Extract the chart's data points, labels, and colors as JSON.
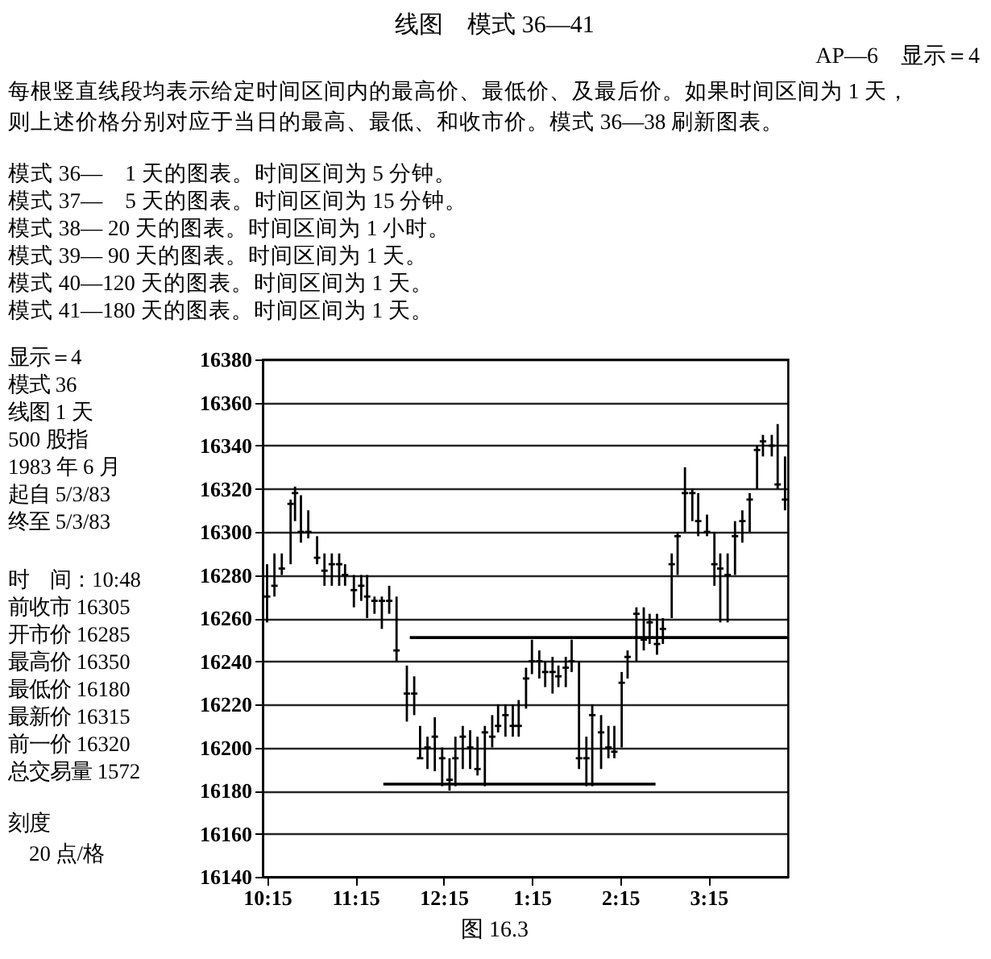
{
  "chart_data": {
    "type": "candlestick",
    "title": "线图　模式 36—41",
    "subtitle": "AP—6　显示＝4",
    "annotations": [
      "每根竖直线段均表示给定时间区间内的最高价、最低价、及最后价。如果时间区间为 1 天，",
      "则上述价格分别对应于当日的最高、最低、和收市价。模式 36—38 刷新图表。",
      "模式 36—　1 天的图表。时间区间为 5 分钟。",
      "模式 37—　5 天的图表。时间区间为 15 分钟。",
      "模式 38— 20 天的图表。时间区间为 1 小时。",
      "模式 39— 90 天的图表。时间区间为 1 天。",
      "模式 40—120 天的图表。时间区间为 1 天。",
      "模式 41—180 天的图表。时间区间为 1 天。",
      "显示＝4",
      "模式 36",
      "线图 1 天",
      "500 股指",
      "1983 年 6 月",
      "起自 5/3/83",
      "终至 5/3/83",
      "时　间：10:48",
      "前收市 16305",
      "开市价 16285",
      "最高价 16350",
      "最低价 16180",
      "最新价 16315",
      "前一价 16320",
      "总交易量 1572",
      "刻度",
      "20 点/格",
      "图 16.3"
    ],
    "color": "#000000",
    "x": [
      "1983-05-03T10:15",
      "1983-05-03T10:20",
      "1983-05-03T10:25",
      "1983-05-03T10:31",
      "1983-05-03T10:34",
      "1983-05-03T10:38",
      "1983-05-03T10:43",
      "1983-05-03T10:49",
      "1983-05-03T10:54",
      "1983-05-03T10:59",
      "1983-05-03T11:04",
      "1983-05-03T11:08",
      "1983-05-03T11:14",
      "1983-05-03T11:19",
      "1983-05-03T11:23",
      "1983-05-03T11:28",
      "1983-05-03T11:33",
      "1983-05-03T11:38",
      "1983-05-03T11:43",
      "1983-05-03T11:50",
      "1983-05-03T11:55",
      "1983-05-03T11:59",
      "1983-05-03T12:04",
      "1983-05-03T12:09",
      "1983-05-03T12:14",
      "1983-05-03T12:19",
      "1983-05-03T12:23",
      "1983-05-03T12:28",
      "1983-05-03T12:33",
      "1983-05-03T12:38",
      "1983-05-03T12:43",
      "1983-05-03T12:48",
      "1983-05-03T12:52",
      "1983-05-03T12:57",
      "1983-05-03T13:02",
      "1983-05-03T13:06",
      "1983-05-03T13:11",
      "1983-05-03T13:15",
      "1983-05-03T13:20",
      "1983-05-03T13:24",
      "1983-05-03T13:29",
      "1983-05-03T13:33",
      "1983-05-03T13:38",
      "1983-05-03T13:42",
      "1983-05-03T13:47",
      "1983-05-03T13:52",
      "1983-05-03T13:56",
      "1983-05-03T14:02",
      "1983-05-03T14:07",
      "1983-05-03T14:11",
      "1983-05-03T14:16",
      "1983-05-03T14:20",
      "1983-05-03T14:26",
      "1983-05-03T14:31",
      "1983-05-03T14:35",
      "1983-05-03T14:40",
      "1983-05-03T14:44",
      "1983-05-03T14:50",
      "1983-05-03T14:54",
      "1983-05-03T14:59",
      "1983-05-03T15:04",
      "1983-05-03T15:08",
      "1983-05-03T15:14",
      "1983-05-03T15:19",
      "1983-05-03T15:23",
      "1983-05-03T15:28",
      "1983-05-03T15:33",
      "1983-05-03T15:38",
      "1983-05-03T15:43",
      "1983-05-03T15:48",
      "1983-05-03T15:52",
      "1983-05-03T15:58",
      "1983-05-03T16:02",
      "1983-05-03T16:07"
    ],
    "ohlc": [
      [
        16270,
        16285,
        16258,
        16270
      ],
      [
        16275,
        16290,
        16270,
        16275
      ],
      [
        16283,
        16290,
        16280,
        16283
      ],
      [
        16313,
        16315,
        16285,
        16313
      ],
      [
        16318,
        16321,
        16305,
        16318
      ],
      [
        16300,
        16317,
        16295,
        16300
      ],
      [
        16300,
        16310,
        16297,
        16300
      ],
      [
        16288,
        16298,
        16285,
        16288
      ],
      [
        16282,
        16290,
        16275,
        16282
      ],
      [
        16285,
        16290,
        16275,
        16285
      ],
      [
        16285,
        16290,
        16275,
        16285
      ],
      [
        16280,
        16285,
        16275,
        16280
      ],
      [
        16273,
        16280,
        16265,
        16273
      ],
      [
        16275,
        16280,
        16268,
        16275
      ],
      [
        16270,
        16280,
        16260,
        16270
      ],
      [
        16268,
        16270,
        16262,
        16268
      ],
      [
        16268,
        16270,
        16255,
        16268
      ],
      [
        16268,
        16275,
        16262,
        16268
      ],
      [
        16245,
        16270,
        16240,
        16245
      ],
      [
        16225,
        16238,
        16212,
        16225
      ],
      [
        16225,
        16233,
        16215,
        16225
      ],
      [
        16195,
        16210,
        16195,
        16195
      ],
      [
        16200,
        16205,
        16190,
        16200
      ],
      [
        16205,
        16214,
        16189,
        16205
      ],
      [
        16195,
        16200,
        16182,
        16195
      ],
      [
        16185,
        16195,
        16180,
        16185
      ],
      [
        16195,
        16205,
        16182,
        16195
      ],
      [
        16205,
        16210,
        16190,
        16205
      ],
      [
        16200,
        16208,
        16190,
        16200
      ],
      [
        16190,
        16205,
        16187,
        16190
      ],
      [
        16207,
        16210,
        16182,
        16207
      ],
      [
        16205,
        16215,
        16200,
        16205
      ],
      [
        16210,
        16220,
        16207,
        16210
      ],
      [
        16215,
        16220,
        16205,
        16215
      ],
      [
        16210,
        16220,
        16205,
        16210
      ],
      [
        16210,
        16222,
        16205,
        16210
      ],
      [
        16232,
        16237,
        16218,
        16232
      ],
      [
        16240,
        16250,
        16234,
        16240
      ],
      [
        16240,
        16245,
        16232,
        16240
      ],
      [
        16235,
        16240,
        16228,
        16235
      ],
      [
        16235,
        16242,
        16225,
        16235
      ],
      [
        16233,
        16238,
        16228,
        16233
      ],
      [
        16237,
        16242,
        16228,
        16237
      ],
      [
        16240,
        16250,
        16235,
        16240
      ],
      [
        16195,
        16240,
        16190,
        16195
      ],
      [
        16195,
        16205,
        16182,
        16195
      ],
      [
        16215,
        16220,
        16182,
        16215
      ],
      [
        16207,
        16215,
        16190,
        16207
      ],
      [
        16200,
        16210,
        16195,
        16200
      ],
      [
        16198,
        16210,
        16195,
        16198
      ],
      [
        16230,
        16235,
        16200,
        16230
      ],
      [
        16242,
        16245,
        16232,
        16242
      ],
      [
        16262,
        16265,
        16240,
        16262
      ],
      [
        16250,
        16265,
        16245,
        16250
      ],
      [
        16258,
        16262,
        16248,
        16258
      ],
      [
        16248,
        16262,
        16243,
        16248
      ],
      [
        16255,
        16260,
        16248,
        16255
      ],
      [
        16285,
        16290,
        16260,
        16285
      ],
      [
        16298,
        16300,
        16280,
        16298
      ],
      [
        16318,
        16330,
        16300,
        16318
      ],
      [
        16318,
        16320,
        16305,
        16318
      ],
      [
        16305,
        16318,
        16298,
        16305
      ],
      [
        16300,
        16308,
        16298,
        16300
      ],
      [
        16285,
        16300,
        16275,
        16285
      ],
      [
        16283,
        16290,
        16258,
        16283
      ],
      [
        16280,
        16290,
        16258,
        16280
      ],
      [
        16298,
        16305,
        16280,
        16298
      ],
      [
        16305,
        16310,
        16295,
        16305
      ],
      [
        16315,
        16318,
        16300,
        16315
      ],
      [
        16338,
        16340,
        16320,
        16338
      ],
      [
        16342,
        16345,
        16335,
        16342
      ],
      [
        16340,
        16345,
        16335,
        16340
      ],
      [
        16322,
        16350,
        16320,
        16322
      ],
      [
        16315,
        16335,
        16310,
        16315
      ]
    ],
    "series": [
      {
        "type": "line",
        "x": [
          "1983-05-03T11:52",
          "1983-05-03T16:09"
        ],
        "values": [
          16251,
          16251
        ],
        "color": "#000000"
      },
      {
        "type": "line",
        "x": [
          "1983-05-03T11:34",
          "1983-05-03T14:39"
        ],
        "values": [
          16183,
          16183
        ],
        "color": "#000000"
      }
    ],
    "xlim": [
      "1983-05-03T10:12",
      "1983-05-03T16:09"
    ],
    "xticks": [
      {
        "value": "1983-05-03T10:15",
        "label": "10:15"
      },
      {
        "value": "1983-05-03T11:15",
        "label": "11:15"
      },
      {
        "value": "1983-05-03T12:15",
        "label": "12:15"
      },
      {
        "value": "1983-05-03T13:15",
        "label": "1:15"
      },
      {
        "value": "1983-05-03T14:15",
        "label": "2:15"
      },
      {
        "value": "1983-05-03T15:15",
        "label": "3:15"
      }
    ],
    "ylim": [
      16140,
      16380
    ],
    "yticks": [
      16140,
      16160,
      16180,
      16200,
      16220,
      16240,
      16260,
      16280,
      16300,
      16320,
      16340,
      16360,
      16380
    ],
    "grid": "y"
  }
}
